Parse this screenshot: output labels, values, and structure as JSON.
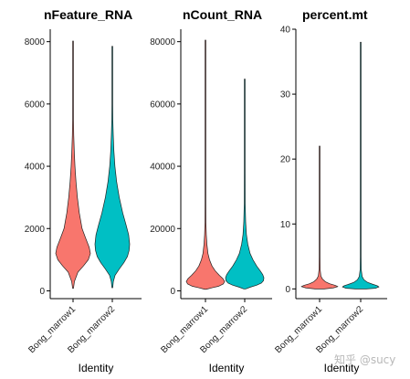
{
  "chart_data": [
    {
      "type": "violin",
      "title": "nFeature_RNA",
      "xlabel": "Identity",
      "ylabel": "",
      "categories": [
        "Bong_marrow1",
        "Bong_marrow2"
      ],
      "colors": [
        "#F8766D",
        "#00BFC4"
      ],
      "yticks": [
        0,
        2000,
        4000,
        6000,
        8000
      ],
      "ytick_labels": [
        "0",
        "2000",
        "4000",
        "6000",
        "8000"
      ],
      "ylim": [
        -250,
        8400
      ],
      "grid": false,
      "legend": "none",
      "series": [
        {
          "name": "Bong_marrow1",
          "min": 80,
          "max": 8020,
          "density": [
            [
              80,
              0.02
            ],
            [
              300,
              0.08
            ],
            [
              600,
              0.28
            ],
            [
              800,
              0.6
            ],
            [
              1000,
              0.88
            ],
            [
              1200,
              1.0
            ],
            [
              1400,
              0.93
            ],
            [
              1700,
              0.72
            ],
            [
              2000,
              0.52
            ],
            [
              2500,
              0.36
            ],
            [
              3000,
              0.25
            ],
            [
              3500,
              0.17
            ],
            [
              4000,
              0.11
            ],
            [
              4500,
              0.07
            ],
            [
              5000,
              0.04
            ],
            [
              5500,
              0.025
            ],
            [
              6000,
              0.015
            ],
            [
              7000,
              0.008
            ],
            [
              8020,
              0.004
            ]
          ]
        },
        {
          "name": "Bong_marrow2",
          "min": 100,
          "max": 7850,
          "density": [
            [
              100,
              0.02
            ],
            [
              300,
              0.06
            ],
            [
              500,
              0.16
            ],
            [
              700,
              0.4
            ],
            [
              900,
              0.66
            ],
            [
              1100,
              0.87
            ],
            [
              1300,
              0.97
            ],
            [
              1500,
              1.0
            ],
            [
              1800,
              0.94
            ],
            [
              2100,
              0.8
            ],
            [
              2500,
              0.6
            ],
            [
              3000,
              0.4
            ],
            [
              3500,
              0.25
            ],
            [
              4000,
              0.15
            ],
            [
              4500,
              0.09
            ],
            [
              5000,
              0.055
            ],
            [
              5500,
              0.03
            ],
            [
              6000,
              0.017
            ],
            [
              7000,
              0.008
            ],
            [
              7850,
              0.004
            ]
          ]
        }
      ]
    },
    {
      "type": "violin",
      "title": "nCount_RNA",
      "xlabel": "Identity",
      "ylabel": "",
      "categories": [
        "Bong_marrow1",
        "Bong_marrow2"
      ],
      "colors": [
        "#F8766D",
        "#00BFC4"
      ],
      "yticks": [
        0,
        20000,
        40000,
        60000,
        80000
      ],
      "ytick_labels": [
        "0",
        "20000",
        "40000",
        "60000",
        "80000"
      ],
      "ylim": [
        -2500,
        84000
      ],
      "grid": false,
      "legend": "none",
      "series": [
        {
          "name": "Bong_marrow1",
          "min": 500,
          "max": 80500,
          "density": [
            [
              500,
              0.04
            ],
            [
              1000,
              0.35
            ],
            [
              1500,
              0.7
            ],
            [
              2200,
              0.93
            ],
            [
              3000,
              1.0
            ],
            [
              4000,
              0.9
            ],
            [
              5000,
              0.72
            ],
            [
              6500,
              0.5
            ],
            [
              8000,
              0.34
            ],
            [
              10000,
              0.21
            ],
            [
              12000,
              0.13
            ],
            [
              15000,
              0.075
            ],
            [
              18000,
              0.045
            ],
            [
              22000,
              0.025
            ],
            [
              28000,
              0.014
            ],
            [
              40000,
              0.008
            ],
            [
              60000,
              0.005
            ],
            [
              80500,
              0.003
            ]
          ]
        },
        {
          "name": "Bong_marrow2",
          "min": 600,
          "max": 68000,
          "density": [
            [
              600,
              0.04
            ],
            [
              1200,
              0.3
            ],
            [
              1800,
              0.62
            ],
            [
              2500,
              0.87
            ],
            [
              3300,
              0.98
            ],
            [
              4200,
              1.0
            ],
            [
              5200,
              0.94
            ],
            [
              6500,
              0.8
            ],
            [
              8000,
              0.62
            ],
            [
              10000,
              0.43
            ],
            [
              12000,
              0.28
            ],
            [
              15000,
              0.16
            ],
            [
              18000,
              0.09
            ],
            [
              22000,
              0.05
            ],
            [
              28000,
              0.025
            ],
            [
              40000,
              0.012
            ],
            [
              55000,
              0.006
            ],
            [
              68000,
              0.003
            ]
          ]
        }
      ]
    },
    {
      "type": "violin",
      "title": "percent.mt",
      "xlabel": "Identity",
      "ylabel": "",
      "categories": [
        "Bong_marrow1",
        "Bong_marrow2"
      ],
      "colors": [
        "#F8766D",
        "#00BFC4"
      ],
      "yticks": [
        0,
        10,
        20,
        30,
        40
      ],
      "ytick_labels": [
        "0",
        "10",
        "20",
        "30",
        "40"
      ],
      "ylim": [
        -1.5,
        40
      ],
      "grid": false,
      "legend": "none",
      "series": [
        {
          "name": "Bong_marrow1",
          "min": 0,
          "max": 22,
          "density": [
            [
              0,
              0.25
            ],
            [
              0.15,
              0.75
            ],
            [
              0.35,
              1.0
            ],
            [
              0.55,
              0.85
            ],
            [
              0.8,
              0.55
            ],
            [
              1.1,
              0.32
            ],
            [
              1.5,
              0.16
            ],
            [
              2.0,
              0.07
            ],
            [
              3.0,
              0.03
            ],
            [
              5.0,
              0.015
            ],
            [
              8.0,
              0.008
            ],
            [
              12.0,
              0.006
            ],
            [
              22.0,
              0.004
            ]
          ]
        },
        {
          "name": "Bong_marrow2",
          "min": 0,
          "max": 38,
          "density": [
            [
              0,
              0.3
            ],
            [
              0.1,
              0.8
            ],
            [
              0.3,
              1.0
            ],
            [
              0.5,
              0.9
            ],
            [
              0.75,
              0.62
            ],
            [
              1.0,
              0.38
            ],
            [
              1.4,
              0.18
            ],
            [
              1.9,
              0.08
            ],
            [
              3.0,
              0.03
            ],
            [
              5.0,
              0.015
            ],
            [
              10.0,
              0.008
            ],
            [
              20.0,
              0.005
            ],
            [
              38.0,
              0.004
            ]
          ]
        }
      ]
    }
  ],
  "watermark": "知乎 @sucy"
}
